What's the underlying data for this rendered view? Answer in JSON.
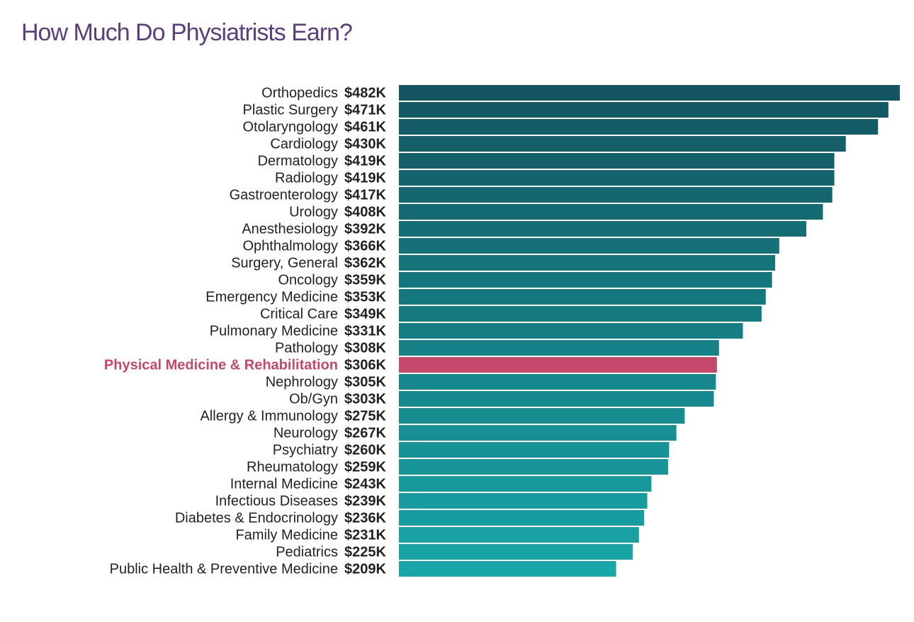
{
  "chart_data": {
    "type": "bar",
    "orientation": "horizontal",
    "title": "How Much Do Physiatrists Earn?",
    "categories": [
      "Orthopedics",
      "Plastic Surgery",
      "Otolaryngology",
      "Cardiology",
      "Dermatology",
      "Radiology",
      "Gastroenterology",
      "Urology",
      "Anesthesiology",
      "Ophthalmology",
      "Surgery, General",
      "Oncology",
      "Emergency Medicine",
      "Critical Care",
      "Pulmonary Medicine",
      "Pathology",
      "Physical Medicine & Rehabilitation",
      "Nephrology",
      "Ob/Gyn",
      "Allergy & Immunology",
      "Neurology",
      "Psychiatry",
      "Rheumatology",
      "Internal Medicine",
      "Infectious Diseases",
      "Diabetes & Endocrinology",
      "Family Medicine",
      "Pediatrics",
      "Public Health & Preventive Medicine"
    ],
    "values": [
      482,
      471,
      461,
      430,
      419,
      419,
      417,
      408,
      392,
      366,
      362,
      359,
      353,
      349,
      331,
      308,
      306,
      305,
      303,
      275,
      267,
      260,
      259,
      243,
      239,
      236,
      231,
      225,
      209
    ],
    "value_labels": [
      "$482K",
      "$471K",
      "$461K",
      "$430K",
      "$419K",
      "$419K",
      "$417K",
      "$408K",
      "$392K",
      "$366K",
      "$362K",
      "$359K",
      "$353K",
      "$349K",
      "$331K",
      "$308K",
      "$306K",
      "$305K",
      "$303K",
      "$275K",
      "$267K",
      "$260K",
      "$259K",
      "$243K",
      "$239K",
      "$236K",
      "$231K",
      "$225K",
      "$209K"
    ],
    "colors": [
      "#135660",
      "#135963",
      "#135c65",
      "#145f68",
      "#14616a",
      "#14646d",
      "#14676f",
      "#146a72",
      "#146d75",
      "#157077",
      "#15737a",
      "#15757c",
      "#15787f",
      "#157b81",
      "#157e84",
      "#168187",
      "#c4486a",
      "#16878c",
      "#16898e",
      "#168c91",
      "#178f93",
      "#179296",
      "#179599",
      "#17989b",
      "#179b9e",
      "#179da0",
      "#18a0a3",
      "#18a3a5",
      "#18a6a8"
    ],
    "highlight_color": "#c4486a"
  }
}
